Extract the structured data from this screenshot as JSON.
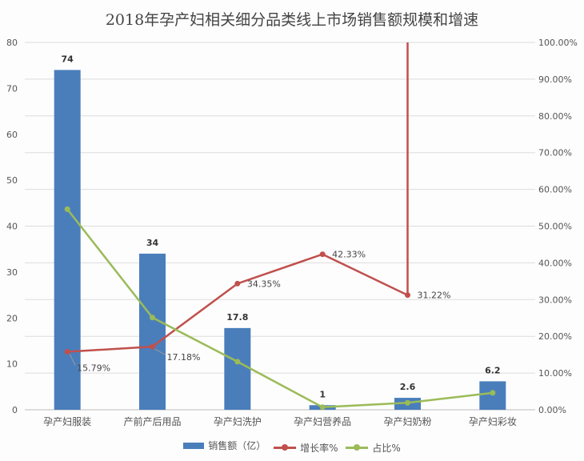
{
  "chart_data": {
    "type": "bar+line",
    "title": "2018年孕产妇相关细分品类线上市场销售额规模和增速",
    "categories": [
      "孕产妇服装",
      "产前产后用品",
      "孕产妇洗护",
      "孕产妇营养品",
      "孕产妇奶粉",
      "孕产妇彩妆"
    ],
    "left_axis": {
      "ylim": [
        0,
        80
      ],
      "ticks": [
        "0",
        "10",
        "20",
        "30",
        "40",
        "50",
        "60",
        "70",
        "80"
      ]
    },
    "right_axis": {
      "ylim": [
        0,
        1
      ],
      "ticks": [
        "0.00%",
        "10.00%",
        "20.00%",
        "30.00%",
        "40.00%",
        "50.00%",
        "60.00%",
        "70.00%",
        "80.00%",
        "90.00%",
        "100.00%"
      ]
    },
    "series": [
      {
        "name": "销售额（亿）",
        "type": "bar",
        "axis": "left",
        "color": "#4a7ebb",
        "values": [
          74,
          34,
          17.8,
          1,
          2.6,
          6.2
        ],
        "labels": [
          "74",
          "34",
          "17.8",
          "1",
          "2.6",
          "6.2"
        ]
      },
      {
        "name": "增长率%",
        "type": "line",
        "axis": "right",
        "color": "#c0504d",
        "values": [
          0.1579,
          0.1718,
          0.3435,
          0.4233,
          0.3122,
          null
        ],
        "labels": [
          "15.79%",
          "17.18%",
          "34.35%",
          "42.33%",
          "31.22%",
          ""
        ]
      },
      {
        "name": "占比%",
        "type": "line",
        "axis": "right",
        "color": "#9bbb59",
        "values": [
          0.546,
          0.251,
          0.131,
          0.007,
          0.019,
          0.046
        ]
      }
    ],
    "grid": true,
    "legend": "bottom"
  }
}
